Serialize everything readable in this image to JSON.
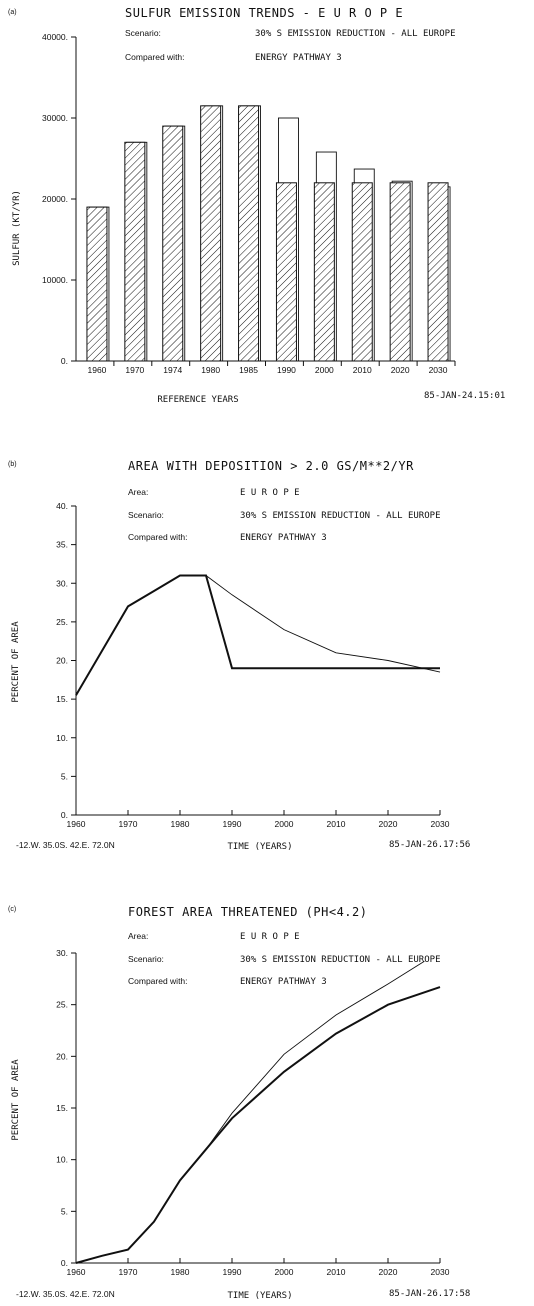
{
  "chart_data": [
    {
      "type": "bar",
      "panel": "(a)",
      "title": "SULFUR EMISSION TRENDS - E U R O P E",
      "meta": [
        {
          "label": "Scenario:",
          "value": "30% S EMISSION REDUCTION  -  ALL EUROPE"
        },
        {
          "label": "Compared with:",
          "value": "ENERGY PATHWAY 3"
        }
      ],
      "ylabel": "SULFUR (KT/YR)",
      "xlabel": "REFERENCE YEARS",
      "stamp": "85-JAN-24.15:01",
      "ylim": [
        0,
        40000
      ],
      "yticks": [
        "0.",
        "10000.",
        "20000.",
        "30000.",
        "40000."
      ],
      "categories": [
        "1960",
        "1970",
        "1974",
        "1980",
        "1985",
        "1990",
        "2000",
        "2010",
        "2020",
        "2030"
      ],
      "series": [
        {
          "role": "scenario",
          "values": [
            19000,
            27000,
            29000,
            31500,
            31500,
            22000,
            22000,
            22000,
            22000,
            22000
          ]
        },
        {
          "role": "comparison",
          "values": [
            19000,
            27000,
            29000,
            31500,
            31500,
            30000,
            25800,
            23700,
            22200,
            21500
          ]
        }
      ]
    },
    {
      "type": "line",
      "panel": "(b)",
      "title": "AREA WITH DEPOSITION >  2.0 GS/M**2/YR",
      "meta": [
        {
          "label": "Area:",
          "value": "E U R O P E"
        },
        {
          "label": "Scenario:",
          "value": "30% S EMISSION REDUCTION  -  ALL EUROPE"
        },
        {
          "label": "Compared with:",
          "value": "ENERGY PATHWAY 3"
        }
      ],
      "ylabel": "PERCENT OF AREA",
      "xlabel": "TIME (YEARS)",
      "footer_left": "-12.W. 35.0S. 42.E. 72.0N",
      "stamp": "85-JAN-26.17:56",
      "xlim": [
        1960,
        2030
      ],
      "ylim": [
        0,
        40
      ],
      "xticks": [
        "1960",
        "1970",
        "1980",
        "1990",
        "2000",
        "2010",
        "2020",
        "2030"
      ],
      "yticks": [
        "0.",
        "5.",
        "10.",
        "15.",
        "20.",
        "25.",
        "30.",
        "35.",
        "40."
      ],
      "series": [
        {
          "role": "scenario",
          "x": [
            1960,
            1970,
            1975,
            1980,
            1985,
            1990,
            2000,
            2010,
            2020,
            2030
          ],
          "y": [
            15.5,
            27,
            29,
            31,
            31,
            19,
            19,
            19,
            19,
            19
          ]
        },
        {
          "role": "comparison",
          "x": [
            1960,
            1970,
            1975,
            1980,
            1985,
            1990,
            2000,
            2010,
            2020,
            2030
          ],
          "y": [
            15.5,
            27,
            29,
            31,
            31,
            28.5,
            24,
            21,
            20,
            18.5
          ]
        }
      ]
    },
    {
      "type": "line",
      "panel": "(c)",
      "title": "FOREST AREA THREATENED (PH<4.2)",
      "meta": [
        {
          "label": "Area:",
          "value": "E U R O P E"
        },
        {
          "label": "Scenario:",
          "value": "30% S EMISSION REDUCTION  -  ALL EUROPE"
        },
        {
          "label": "Compared with:",
          "value": "ENERGY PATHWAY 3"
        }
      ],
      "ylabel": "PERCENT OF AREA",
      "xlabel": "TIME (YEARS)",
      "footer_left": "-12.W. 35.0S. 42.E. 72.0N",
      "stamp": "85-JAN-26.17:58",
      "xlim": [
        1960,
        2030
      ],
      "ylim": [
        0,
        30
      ],
      "xticks": [
        "1960",
        "1970",
        "1980",
        "1990",
        "2000",
        "2010",
        "2020",
        "2030"
      ],
      "yticks": [
        "0.",
        "5.",
        "10.",
        "15.",
        "20.",
        "25.",
        "30."
      ],
      "series": [
        {
          "role": "scenario",
          "x": [
            1960,
            1965,
            1970,
            1975,
            1980,
            1985,
            1990,
            2000,
            2010,
            2020,
            2030
          ],
          "y": [
            0,
            0.7,
            1.3,
            4,
            8,
            11,
            14,
            18.5,
            22.2,
            25,
            26.7
          ]
        },
        {
          "role": "comparison",
          "x": [
            1960,
            1965,
            1970,
            1975,
            1980,
            1985,
            1990,
            2000,
            2010,
            2020,
            2027
          ],
          "y": [
            0,
            0.7,
            1.3,
            4,
            8,
            11,
            14.5,
            20.2,
            24,
            27,
            29.2
          ]
        }
      ]
    }
  ]
}
